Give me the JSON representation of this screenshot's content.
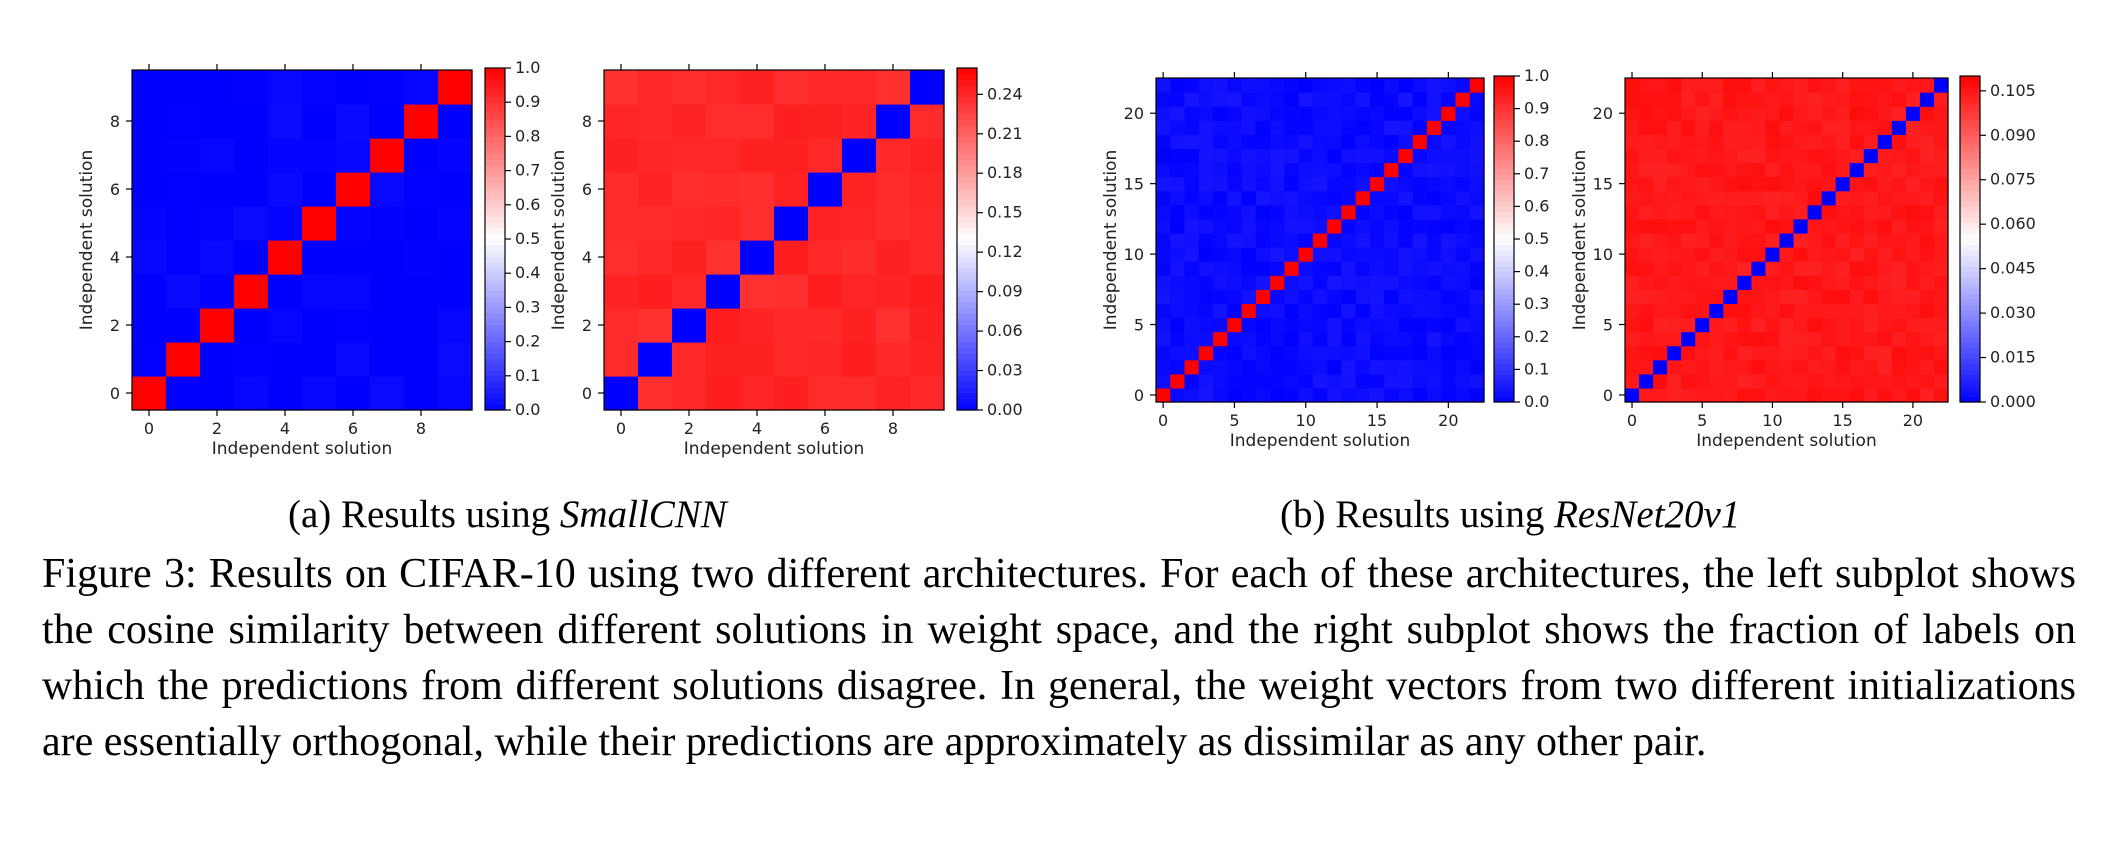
{
  "chart_data": [
    {
      "type": "heatmap",
      "n": 10,
      "diagonal_value": 1.0,
      "off_diagonal_value": 0.0,
      "xlabel": "Independent solution",
      "ylabel": "Independent solution",
      "xticks": [
        0,
        2,
        4,
        6,
        8
      ],
      "yticks": [
        0,
        2,
        4,
        6,
        8
      ],
      "colorbar": {
        "min": 0.0,
        "max": 1.0,
        "ticks": [
          "0.0",
          "0.1",
          "0.2",
          "0.3",
          "0.4",
          "0.5",
          "0.6",
          "0.7",
          "0.8",
          "0.9",
          "1.0"
        ]
      },
      "colormap": "bwr"
    },
    {
      "type": "heatmap",
      "n": 10,
      "diagonal_value": 0.0,
      "off_diagonal_value": 0.24,
      "xlabel": "Independent solution",
      "ylabel": "Independent solution",
      "xticks": [
        0,
        2,
        4,
        6,
        8
      ],
      "yticks": [
        0,
        2,
        4,
        6,
        8
      ],
      "colorbar": {
        "min": 0.0,
        "max": 0.26,
        "ticks": [
          "0.00",
          "0.03",
          "0.06",
          "0.09",
          "0.12",
          "0.15",
          "0.18",
          "0.21",
          "0.24"
        ]
      },
      "colormap": "bwr"
    },
    {
      "type": "heatmap",
      "n": 23,
      "diagonal_value": 1.0,
      "off_diagonal_value": 0.02,
      "xlabel": "Independent solution",
      "ylabel": "Independent solution",
      "xticks": [
        0,
        5,
        10,
        15,
        20
      ],
      "yticks": [
        0,
        5,
        10,
        15,
        20
      ],
      "colorbar": {
        "min": 0.0,
        "max": 1.0,
        "ticks": [
          "0.0",
          "0.1",
          "0.2",
          "0.3",
          "0.4",
          "0.5",
          "0.6",
          "0.7",
          "0.8",
          "0.9",
          "1.0"
        ]
      },
      "colormap": "bwr"
    },
    {
      "type": "heatmap",
      "n": 23,
      "diagonal_value": 0.0,
      "off_diagonal_value": 0.105,
      "xlabel": "Independent solution",
      "ylabel": "Independent solution",
      "xticks": [
        0,
        5,
        10,
        15,
        20
      ],
      "yticks": [
        0,
        5,
        10,
        15,
        20
      ],
      "colorbar": {
        "min": 0.0,
        "max": 0.11,
        "ticks": [
          "0.000",
          "0.015",
          "0.030",
          "0.045",
          "0.060",
          "0.075",
          "0.090",
          "0.105"
        ]
      },
      "colormap": "bwr"
    }
  ],
  "subcaptions": {
    "a_prefix": "(a) Results using ",
    "a_model": "SmallCNN",
    "b_prefix": "(b) Results using ",
    "b_model": "ResNet20v1"
  },
  "caption": "Figure 3: Results on CIFAR-10 using two different architectures. For each of these architectures, the left subplot shows the cosine similarity between different solutions in weight space, and the right subplot shows the fraction of labels on which the predictions from different solutions disagree. In general, the weight vectors from two different initializations are essentially orthogonal, while their predictions are approximately as dissimilar as any other pair."
}
